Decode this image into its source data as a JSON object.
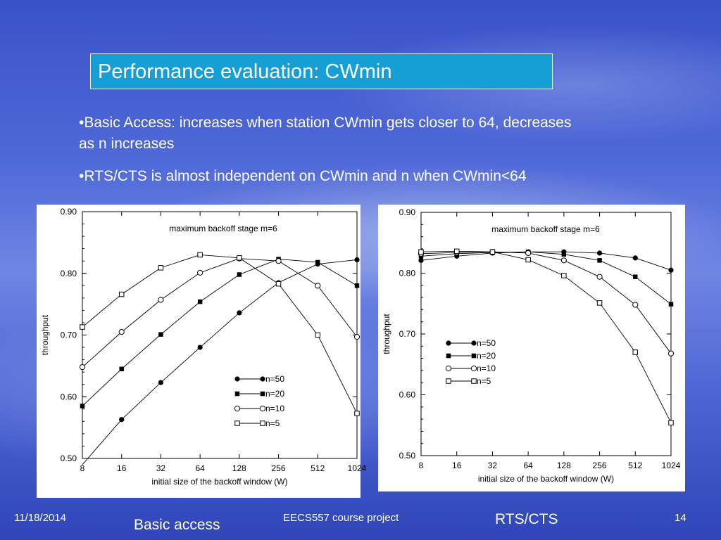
{
  "slide": {
    "title": "Performance evaluation: CWmin",
    "bullets": [
      "•Basic Access: increases when station CWmin gets closer to 64, decreases as n increases",
      "•RTS/CTS is almost independent on CWmin and n when CWmin<64"
    ],
    "footer": {
      "date": "11/18/2014",
      "course": "EECS557 course project",
      "page_number": "14"
    },
    "captions": {
      "left": "Basic access",
      "right": "RTS/CTS"
    }
  },
  "chart_data": [
    {
      "type": "line",
      "annotation": "maximum backoff stage m=6",
      "xlabel": "initial size of the backoff window (W)",
      "ylabel": "throughput",
      "categories": [
        "8",
        "16",
        "32",
        "64",
        "128",
        "256",
        "512",
        "1024"
      ],
      "ylim": [
        0.5,
        0.9
      ],
      "yticks": [
        "0.90",
        "0.80",
        "0.70",
        "0.60",
        "0.50"
      ],
      "legend_position": "bottom-right",
      "series": [
        {
          "name": "n=50",
          "marker": "filled-circle",
          "values": [
            0.49,
            0.563,
            0.623,
            0.68,
            0.736,
            0.785,
            0.815,
            0.822
          ]
        },
        {
          "name": "n=20",
          "marker": "filled-square",
          "values": [
            0.585,
            0.645,
            0.701,
            0.754,
            0.798,
            0.823,
            0.818,
            0.78
          ]
        },
        {
          "name": "n=10",
          "marker": "open-circle",
          "values": [
            0.648,
            0.705,
            0.757,
            0.801,
            0.824,
            0.82,
            0.78,
            0.697
          ]
        },
        {
          "name": "n=5",
          "marker": "open-square",
          "values": [
            0.713,
            0.766,
            0.809,
            0.83,
            0.825,
            0.783,
            0.7,
            0.573
          ]
        }
      ]
    },
    {
      "type": "line",
      "annotation": "maximum backoff stage m=6",
      "xlabel": "initial size of the backoff window (W)",
      "ylabel": "throughput",
      "categories": [
        "8",
        "16",
        "32",
        "64",
        "128",
        "256",
        "512",
        "1024"
      ],
      "ylim": [
        0.5,
        0.9
      ],
      "yticks": [
        "0.90",
        "0.80",
        "0.70",
        "0.60",
        "0.50"
      ],
      "legend_position": "center-left",
      "series": [
        {
          "name": "n=50",
          "marker": "filled-circle",
          "values": [
            0.821,
            0.828,
            0.833,
            0.835,
            0.835,
            0.833,
            0.825,
            0.805
          ]
        },
        {
          "name": "n=20",
          "marker": "filled-square",
          "values": [
            0.828,
            0.832,
            0.834,
            0.835,
            0.831,
            0.821,
            0.794,
            0.749
          ]
        },
        {
          "name": "n=10",
          "marker": "open-circle",
          "values": [
            0.832,
            0.834,
            0.835,
            0.833,
            0.821,
            0.794,
            0.748,
            0.668
          ]
        },
        {
          "name": "n=5",
          "marker": "open-square",
          "values": [
            0.835,
            0.836,
            0.835,
            0.822,
            0.796,
            0.751,
            0.67,
            0.554
          ]
        }
      ]
    }
  ]
}
